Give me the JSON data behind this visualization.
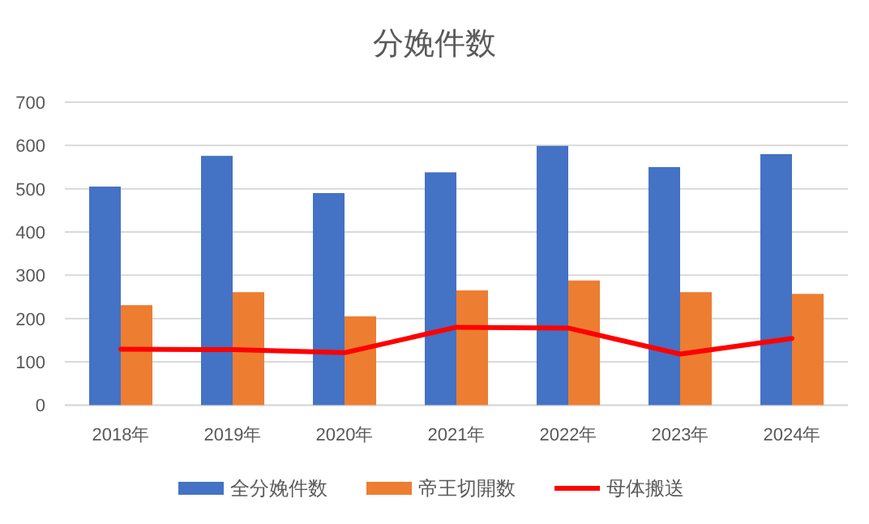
{
  "chart_data": {
    "type": "bar",
    "title": "分娩件数",
    "categories": [
      "2018年",
      "2019年",
      "2020年",
      "2021年",
      "2022年",
      "2023年",
      "2024年"
    ],
    "series": [
      {
        "name": "全分娩件数",
        "color": "#4472c4",
        "values": [
          505,
          576,
          490,
          538,
          599,
          550,
          580
        ]
      },
      {
        "name": "帝王切開数",
        "color": "#ed7d31",
        "values": [
          231,
          261,
          205,
          265,
          288,
          261,
          257
        ]
      },
      {
        "name": "母体搬送",
        "type": "line",
        "color": "#ff0000",
        "marker": "none",
        "values": [
          129,
          128,
          121,
          180,
          178,
          118,
          154
        ]
      }
    ],
    "ylim": [
      0,
      700
    ],
    "yticks": [
      0,
      100,
      200,
      300,
      400,
      500,
      600,
      700
    ],
    "grid": "y",
    "legend": "bottom"
  }
}
